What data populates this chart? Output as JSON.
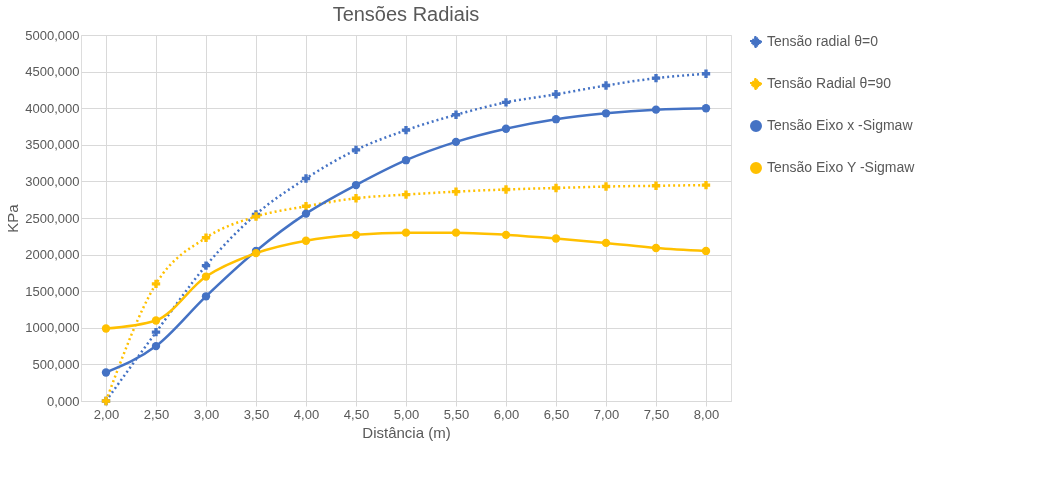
{
  "chart_data": {
    "type": "line",
    "title": "Tensões Radiais",
    "xlabel": "Distância (m)",
    "ylabel": "KPa",
    "categories": [
      "2,00",
      "2,50",
      "3,00",
      "3,50",
      "4,00",
      "4,50",
      "5,00",
      "5,50",
      "6,00",
      "6,50",
      "7,00",
      "7,50",
      "8,00"
    ],
    "series": [
      {
        "name": "Tensão radial θ=0",
        "color": "#4472c4",
        "line_style": "dotted",
        "marker": "cross",
        "values": [
          0,
          940,
          1850,
          2550,
          3040,
          3430,
          3700,
          3910,
          4080,
          4190,
          4310,
          4410,
          4470
        ]
      },
      {
        "name": "Tensão Radial θ=90",
        "color": "#ffc000",
        "line_style": "dotted",
        "marker": "cross",
        "values": [
          0,
          1600,
          2230,
          2520,
          2660,
          2770,
          2820,
          2860,
          2890,
          2910,
          2930,
          2940,
          2950
        ]
      },
      {
        "name": "Tensão Eixo x -Sigmaw",
        "color": "#4472c4",
        "line_style": "solid",
        "marker": "circle",
        "values": [
          390,
          750,
          1430,
          2050,
          2560,
          2950,
          3290,
          3540,
          3720,
          3850,
          3930,
          3980,
          4000
        ]
      },
      {
        "name": "Tensão Eixo Y -Sigmaw",
        "color": "#ffc000",
        "line_style": "solid",
        "marker": "circle",
        "values": [
          990,
          1100,
          1700,
          2020,
          2190,
          2270,
          2300,
          2300,
          2270,
          2220,
          2160,
          2090,
          2050
        ]
      }
    ],
    "ylim": [
      0,
      5000
    ],
    "yticks": [
      {
        "value": 0,
        "label": "0,000"
      },
      {
        "value": 500,
        "label": "500,000"
      },
      {
        "value": 1000,
        "label": "1000,000"
      },
      {
        "value": 1500,
        "label": "1500,000"
      },
      {
        "value": 2000,
        "label": "2000,000"
      },
      {
        "value": 2500,
        "label": "2500,000"
      },
      {
        "value": 3000,
        "label": "3000,000"
      },
      {
        "value": 3500,
        "label": "3500,000"
      },
      {
        "value": 4000,
        "label": "4000,000"
      },
      {
        "value": 4500,
        "label": "4500,000"
      },
      {
        "value": 5000,
        "label": "5000,000"
      }
    ],
    "grid": true,
    "legend": "right"
  }
}
